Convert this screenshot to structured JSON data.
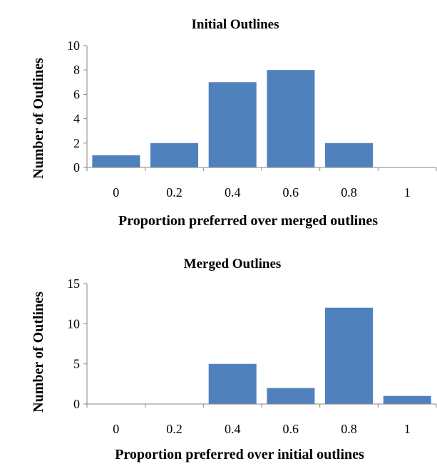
{
  "colors": {
    "bar": "#4f81bd",
    "axis": "#868686",
    "text": "#000000"
  },
  "chart_data": [
    {
      "type": "bar",
      "title": "Initial Outlines",
      "xlabel": "Proportion preferred over merged outlines",
      "ylabel": "Number of Outlines",
      "categories": [
        "0",
        "0.2",
        "0.4",
        "0.6",
        "0.8",
        "1"
      ],
      "values": [
        1,
        2,
        7,
        8,
        2,
        0
      ],
      "ylim": [
        0,
        10
      ],
      "yticks": [
        "0",
        "2",
        "4",
        "6",
        "8",
        "10"
      ],
      "grid": false,
      "legend": "none"
    },
    {
      "type": "bar",
      "title": "Merged Outlines",
      "xlabel": "Proportion preferred over initial outlines",
      "ylabel": "Number of Outlines",
      "categories": [
        "0",
        "0.2",
        "0.4",
        "0.6",
        "0.8",
        "1"
      ],
      "values": [
        0,
        0,
        5,
        2,
        12,
        1
      ],
      "ylim": [
        0,
        15
      ],
      "yticks": [
        "0",
        "5",
        "10",
        "15"
      ],
      "grid": false,
      "legend": "none"
    }
  ]
}
